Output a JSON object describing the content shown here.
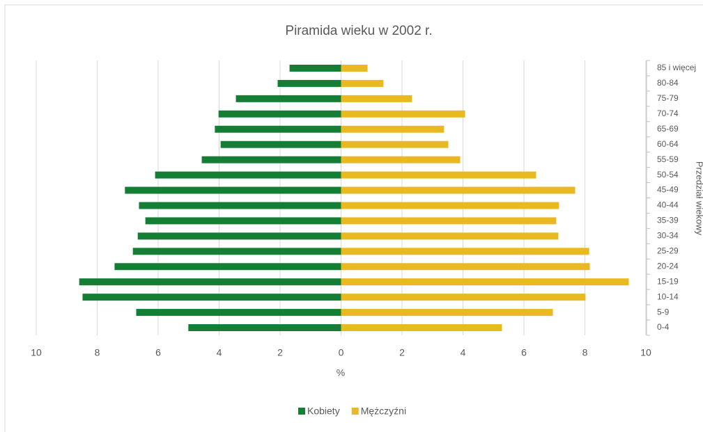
{
  "chart_data": {
    "type": "bar",
    "orientation": "horizontal",
    "title": "Piramida wieku w 2002 r.",
    "x_label": "%",
    "y_label": "Przedział wiekowy",
    "categories": [
      "0-4",
      "5-9",
      "10-14",
      "15-19",
      "20-24",
      "25-29",
      "30-34",
      "35-39",
      "40-44",
      "45-49",
      "50-54",
      "55-59",
      "60-64",
      "65-69",
      "70-74",
      "75-79",
      "80-84",
      "85 i więcej"
    ],
    "series": [
      {
        "name": "Kobiety",
        "color": "#137e34",
        "values": [
          -5.01,
          -6.72,
          -8.48,
          -8.59,
          -7.43,
          -6.83,
          -6.67,
          -6.42,
          -6.63,
          -7.09,
          -6.1,
          -4.57,
          -3.95,
          -4.14,
          -4.02,
          -3.45,
          -2.08,
          -1.69
        ]
      },
      {
        "name": "Mężczyźni",
        "color": "#e8b921",
        "values": [
          5.28,
          6.95,
          8.02,
          9.44,
          8.16,
          8.14,
          7.13,
          7.06,
          7.15,
          7.68,
          6.4,
          3.91,
          3.52,
          3.38,
          4.07,
          2.33,
          1.39,
          0.87
        ]
      }
    ],
    "xlim": [
      -10,
      10
    ],
    "xticks": [
      {
        "value": -10,
        "label": "10"
      },
      {
        "value": -8,
        "label": "8"
      },
      {
        "value": -6,
        "label": "6"
      },
      {
        "value": -4,
        "label": "4"
      },
      {
        "value": -2,
        "label": "2"
      },
      0,
      2,
      4,
      6,
      8,
      10
    ],
    "grid": true,
    "legend": "bottom"
  }
}
